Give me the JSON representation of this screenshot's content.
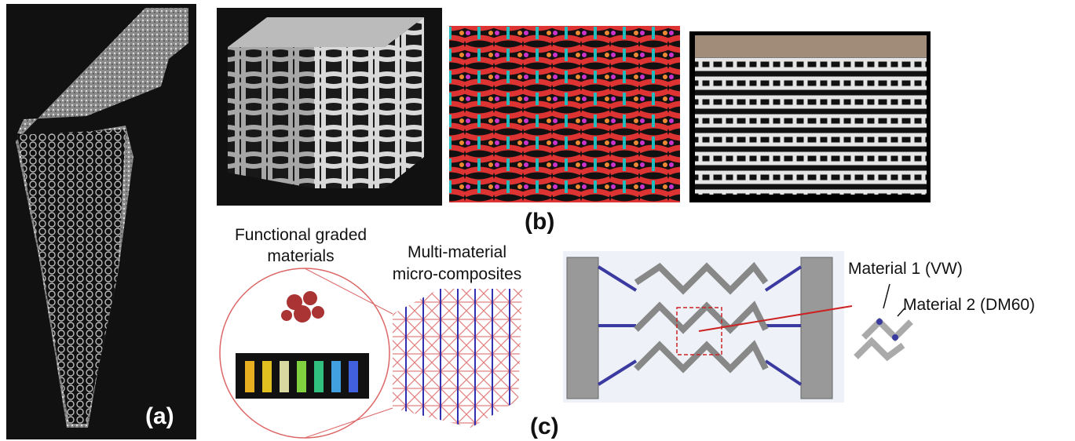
{
  "panel_a": {
    "label": "(a)"
  },
  "panel_b": {
    "label": "(b)"
  },
  "panel_c": {
    "label": "(c)",
    "graded": [
      "Functional graded",
      "materials"
    ],
    "composites": [
      "Multi-material",
      "micro-composites"
    ],
    "material_1": "Material 1 (VW)",
    "material_2": "Material 2 (DM60)"
  }
}
